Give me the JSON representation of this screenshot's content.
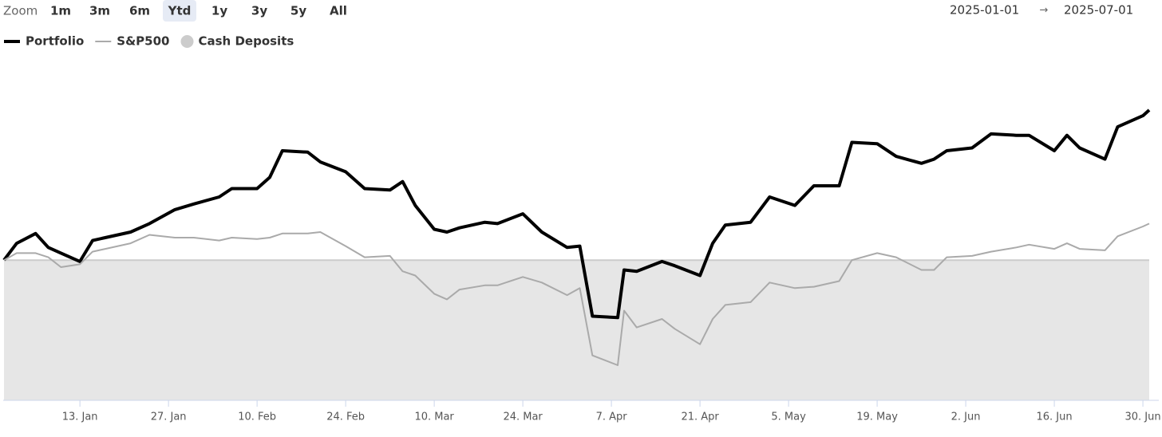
{
  "range_selector": {
    "label": "Zoom",
    "buttons": [
      "1m",
      "3m",
      "6m",
      "Ytd",
      "1y",
      "3y",
      "5y",
      "All"
    ],
    "selected": "Ytd",
    "from": "2025-01-01",
    "separator": "→",
    "to": "2025-07-01"
  },
  "chart_data": {
    "type": "line",
    "x": [
      "2025-01-01",
      "2025-01-03",
      "2025-01-06",
      "2025-01-08",
      "2025-01-10",
      "2025-01-13",
      "2025-01-15",
      "2025-01-17",
      "2025-01-21",
      "2025-01-24",
      "2025-01-28",
      "2025-01-31",
      "2025-02-04",
      "2025-02-06",
      "2025-02-10",
      "2025-02-12",
      "2025-02-14",
      "2025-02-18",
      "2025-02-20",
      "2025-02-24",
      "2025-02-27",
      "2025-03-03",
      "2025-03-05",
      "2025-03-07",
      "2025-03-10",
      "2025-03-12",
      "2025-03-14",
      "2025-03-18",
      "2025-03-20",
      "2025-03-24",
      "2025-03-27",
      "2025-03-31",
      "2025-04-02",
      "2025-04-04",
      "2025-04-08",
      "2025-04-09",
      "2025-04-11",
      "2025-04-15",
      "2025-04-17",
      "2025-04-21",
      "2025-04-23",
      "2025-04-25",
      "2025-04-29",
      "2025-05-02",
      "2025-05-06",
      "2025-05-09",
      "2025-05-13",
      "2025-05-15",
      "2025-05-19",
      "2025-05-22",
      "2025-05-26",
      "2025-05-28",
      "2025-05-30",
      "2025-06-03",
      "2025-06-06",
      "2025-06-10",
      "2025-06-12",
      "2025-06-16",
      "2025-06-18",
      "2025-06-20",
      "2025-06-24",
      "2025-06-26",
      "2025-06-30",
      "2025-07-01"
    ],
    "series": [
      {
        "name": "Portfolio",
        "type": "line",
        "color": "#000000",
        "values": [
          0,
          12,
          19,
          9,
          5,
          -1,
          14,
          16,
          20,
          26,
          36,
          40,
          45,
          51,
          51,
          59,
          78,
          77,
          70,
          63,
          51,
          50,
          56,
          39,
          22,
          20,
          23,
          27,
          26,
          33,
          20,
          9,
          10,
          -40,
          -41,
          -7,
          -8,
          -1,
          -4,
          -11,
          12,
          25,
          27,
          45,
          39,
          53,
          53,
          84,
          83,
          74,
          69,
          72,
          78,
          80,
          90,
          89,
          89,
          78,
          89,
          80,
          72,
          95,
          103,
          107
        ]
      },
      {
        "name": "S&P500",
        "type": "line",
        "color": "#aaaaaa",
        "values": [
          0,
          5,
          5,
          2,
          -5,
          -3,
          6,
          8,
          12,
          18,
          16,
          16,
          14,
          16,
          15,
          16,
          19,
          19,
          20,
          10,
          2,
          3,
          -8,
          -11,
          -24,
          -28,
          -21,
          -18,
          -18,
          -12,
          -16,
          -25,
          -20,
          -68,
          -75,
          -36,
          -48,
          -42,
          -49,
          -60,
          -42,
          -32,
          -30,
          -16,
          -20,
          -19,
          -15,
          0,
          5,
          2,
          -7,
          -7,
          2,
          3,
          6,
          9,
          11,
          8,
          12,
          8,
          7,
          17,
          24,
          26
        ]
      },
      {
        "name": "Cash Deposits",
        "type": "area",
        "color": "#cccccc",
        "values": [
          0,
          0,
          0,
          0,
          0,
          0,
          0,
          0,
          0,
          0,
          0,
          0,
          0,
          0,
          0,
          0,
          0,
          0,
          0,
          0,
          0,
          0,
          0,
          0,
          0,
          0,
          0,
          0,
          0,
          0,
          0,
          0,
          0,
          0,
          0,
          0,
          0,
          0,
          0,
          0,
          0,
          0,
          0,
          0,
          0,
          0,
          0,
          0,
          0,
          0,
          0,
          0,
          0,
          0,
          0,
          0,
          0,
          0,
          0,
          0,
          0,
          0,
          0,
          0
        ]
      }
    ],
    "xlim": [
      "2025-01-01",
      "2025-07-01"
    ],
    "xticks": [
      {
        "value": "2025-01-13",
        "label": "13. Jan"
      },
      {
        "value": "2025-01-27",
        "label": "27. Jan"
      },
      {
        "value": "2025-02-10",
        "label": "10. Feb"
      },
      {
        "value": "2025-02-24",
        "label": "24. Feb"
      },
      {
        "value": "2025-03-10",
        "label": "10. Mar"
      },
      {
        "value": "2025-03-24",
        "label": "24. Mar"
      },
      {
        "value": "2025-04-07",
        "label": "7. Apr"
      },
      {
        "value": "2025-04-21",
        "label": "21. Apr"
      },
      {
        "value": "2025-05-05",
        "label": "5. May"
      },
      {
        "value": "2025-05-19",
        "label": "19. May"
      },
      {
        "value": "2025-06-02",
        "label": "2. Jun"
      },
      {
        "value": "2025-06-16",
        "label": "16. Jun"
      },
      {
        "value": "2025-06-30",
        "label": "30. Jun"
      }
    ],
    "ylim": [
      -100,
      140
    ]
  }
}
